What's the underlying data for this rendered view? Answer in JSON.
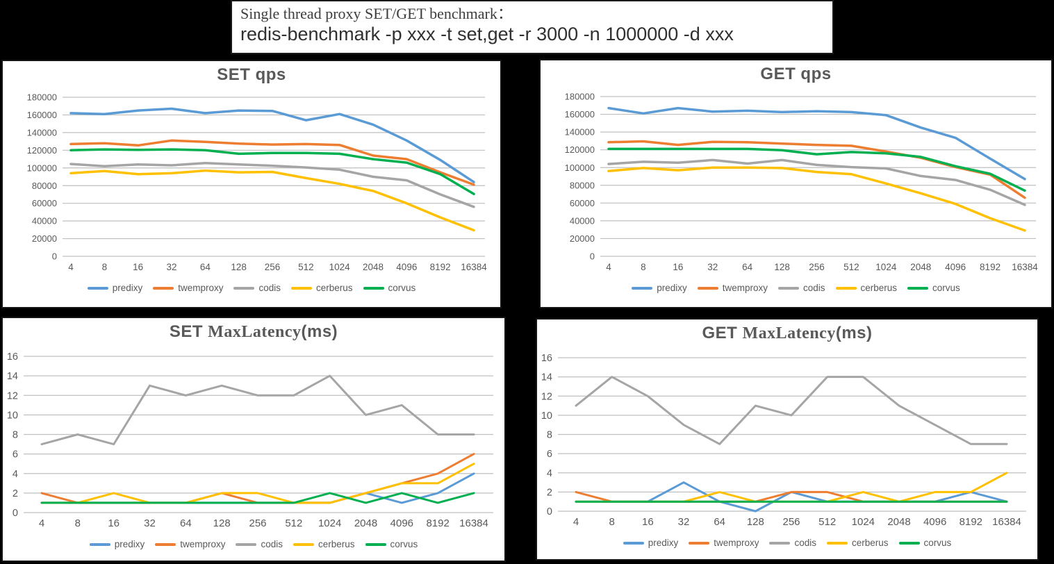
{
  "header": {
    "line1": "Single thread proxy SET/GET benchmark：",
    "line2": "redis-benchmark -p xxx -t set,get -r 3000 -n 1000000 -d xxx"
  },
  "colors": {
    "predixy": "#5B9BD5",
    "twemproxy": "#ED7D31",
    "codis": "#A5A5A5",
    "cerberus": "#FFC000",
    "corvus": "#00B050",
    "grid": "#BFBFBF",
    "text": "#595959",
    "background": "#000000",
    "panel": "#FFFFFF"
  },
  "chart_data": [
    {
      "id": "set-qps",
      "type": "line",
      "title": "SET  qps",
      "title_segments": [
        {
          "text": "SET  qps",
          "font": "sans"
        }
      ],
      "ylim": [
        0,
        180000
      ],
      "ytick": 20000,
      "grid": true,
      "legend_position": "bottom",
      "categories": [
        "4",
        "8",
        "16",
        "32",
        "64",
        "128",
        "256",
        "512",
        "1024",
        "2048",
        "4096",
        "8192",
        "16384"
      ],
      "series": [
        {
          "name": "predixy",
          "color": "#5B9BD5",
          "values": [
            162000,
            161000,
            165000,
            167000,
            162000,
            165000,
            164500,
            154000,
            161000,
            149000,
            131000,
            109000,
            84000
          ]
        },
        {
          "name": "twemproxy",
          "color": "#ED7D31",
          "values": [
            127000,
            128000,
            125500,
            131000,
            129500,
            127500,
            126500,
            127000,
            126000,
            114000,
            110000,
            95000,
            81000
          ]
        },
        {
          "name": "codis",
          "color": "#A5A5A5",
          "values": [
            104500,
            102000,
            104000,
            103000,
            105500,
            104000,
            102500,
            100500,
            98000,
            90000,
            86000,
            70000,
            56000
          ]
        },
        {
          "name": "cerberus",
          "color": "#FFC000",
          "values": [
            94000,
            96500,
            93000,
            94000,
            97000,
            95000,
            95500,
            88500,
            82000,
            74000,
            60000,
            44000,
            29500
          ]
        },
        {
          "name": "corvus",
          "color": "#00B050",
          "values": [
            120000,
            121000,
            120500,
            121000,
            120000,
            116000,
            117000,
            117000,
            116000,
            110000,
            106000,
            93000,
            70500
          ]
        }
      ]
    },
    {
      "id": "get-qps",
      "type": "line",
      "title": "GET  qps",
      "title_segments": [
        {
          "text": "GET  qps",
          "font": "sans"
        }
      ],
      "ylim": [
        0,
        180000
      ],
      "ytick": 20000,
      "grid": true,
      "legend_position": "bottom",
      "categories": [
        "4",
        "8",
        "16",
        "32",
        "64",
        "128",
        "256",
        "512",
        "1024",
        "2048",
        "4096",
        "8192",
        "16384"
      ],
      "series": [
        {
          "name": "predixy",
          "color": "#5B9BD5",
          "values": [
            167000,
            161000,
            167000,
            163000,
            164000,
            162500,
            163500,
            162500,
            159000,
            145000,
            133500,
            110000,
            87000
          ]
        },
        {
          "name": "twemproxy",
          "color": "#ED7D31",
          "values": [
            128500,
            129500,
            125500,
            129000,
            128500,
            127000,
            125500,
            124500,
            118000,
            111000,
            100500,
            92000,
            66000
          ]
        },
        {
          "name": "codis",
          "color": "#A5A5A5",
          "values": [
            104000,
            106500,
            105500,
            108500,
            104500,
            108500,
            103000,
            100500,
            99000,
            90500,
            86000,
            75000,
            58000
          ]
        },
        {
          "name": "cerberus",
          "color": "#FFC000",
          "values": [
            96000,
            99500,
            97000,
            100000,
            100000,
            99500,
            95000,
            92500,
            82000,
            71000,
            59000,
            43000,
            29000
          ]
        },
        {
          "name": "corvus",
          "color": "#00B050",
          "values": [
            121000,
            121000,
            121000,
            121000,
            121000,
            119500,
            115000,
            117500,
            116000,
            112000,
            101500,
            93000,
            74000
          ]
        }
      ]
    },
    {
      "id": "set-maxlatency",
      "type": "line",
      "title": "SET MaxLatency(ms)",
      "title_segments": [
        {
          "text": "SET ",
          "font": "sans"
        },
        {
          "text": "MaxLatency",
          "font": "serif"
        },
        {
          "text": "(ms)",
          "font": "sans"
        }
      ],
      "ylim": [
        0,
        16
      ],
      "ytick": 2,
      "grid": true,
      "legend_position": "bottom",
      "categories": [
        "4",
        "8",
        "16",
        "32",
        "64",
        "128",
        "256",
        "512",
        "1024",
        "2048",
        "4096",
        "8192",
        "16384"
      ],
      "series": [
        {
          "name": "predixy",
          "color": "#5B9BD5",
          "values": [
            1,
            1,
            1,
            1,
            1,
            1,
            1,
            1,
            1,
            2,
            1,
            2,
            4
          ]
        },
        {
          "name": "twemproxy",
          "color": "#ED7D31",
          "values": [
            2,
            1,
            1,
            1,
            1,
            2,
            1,
            1,
            1,
            2,
            3,
            4,
            6
          ]
        },
        {
          "name": "codis",
          "color": "#A5A5A5",
          "values": [
            7,
            8,
            7,
            13,
            12,
            13,
            12,
            12,
            14,
            10,
            11,
            8,
            8
          ]
        },
        {
          "name": "cerberus",
          "color": "#FFC000",
          "values": [
            1,
            1,
            2,
            1,
            1,
            2,
            2,
            1,
            1,
            2,
            3,
            3,
            5
          ]
        },
        {
          "name": "corvus",
          "color": "#00B050",
          "values": [
            1,
            1,
            1,
            1,
            1,
            1,
            1,
            1,
            2,
            1,
            2,
            1,
            2
          ]
        }
      ]
    },
    {
      "id": "get-maxlatency",
      "type": "line",
      "title": "GET MaxLatency(ms)",
      "title_segments": [
        {
          "text": "GET ",
          "font": "sans"
        },
        {
          "text": "MaxLatency",
          "font": "serif"
        },
        {
          "text": "(ms)",
          "font": "sans"
        }
      ],
      "ylim": [
        0,
        16
      ],
      "ytick": 2,
      "grid": true,
      "legend_position": "bottom",
      "categories": [
        "4",
        "8",
        "16",
        "32",
        "64",
        "128",
        "256",
        "512",
        "1024",
        "2048",
        "4096",
        "8192",
        "16384"
      ],
      "series": [
        {
          "name": "predixy",
          "color": "#5B9BD5",
          "values": [
            1,
            1,
            1,
            3,
            1,
            0,
            2,
            1,
            1,
            1,
            1,
            2,
            1
          ]
        },
        {
          "name": "twemproxy",
          "color": "#ED7D31",
          "values": [
            2,
            1,
            1,
            1,
            1,
            1,
            2,
            2,
            1,
            1,
            1,
            1,
            1
          ]
        },
        {
          "name": "codis",
          "color": "#A5A5A5",
          "values": [
            11,
            14,
            12,
            9,
            7,
            11,
            10,
            14,
            14,
            11,
            9,
            7,
            7
          ]
        },
        {
          "name": "cerberus",
          "color": "#FFC000",
          "values": [
            1,
            1,
            1,
            1,
            2,
            1,
            1,
            1,
            2,
            1,
            2,
            2,
            4
          ]
        },
        {
          "name": "corvus",
          "color": "#00B050",
          "values": [
            1,
            1,
            1,
            1,
            1,
            1,
            1,
            1,
            1,
            1,
            1,
            1,
            1
          ]
        }
      ]
    }
  ]
}
